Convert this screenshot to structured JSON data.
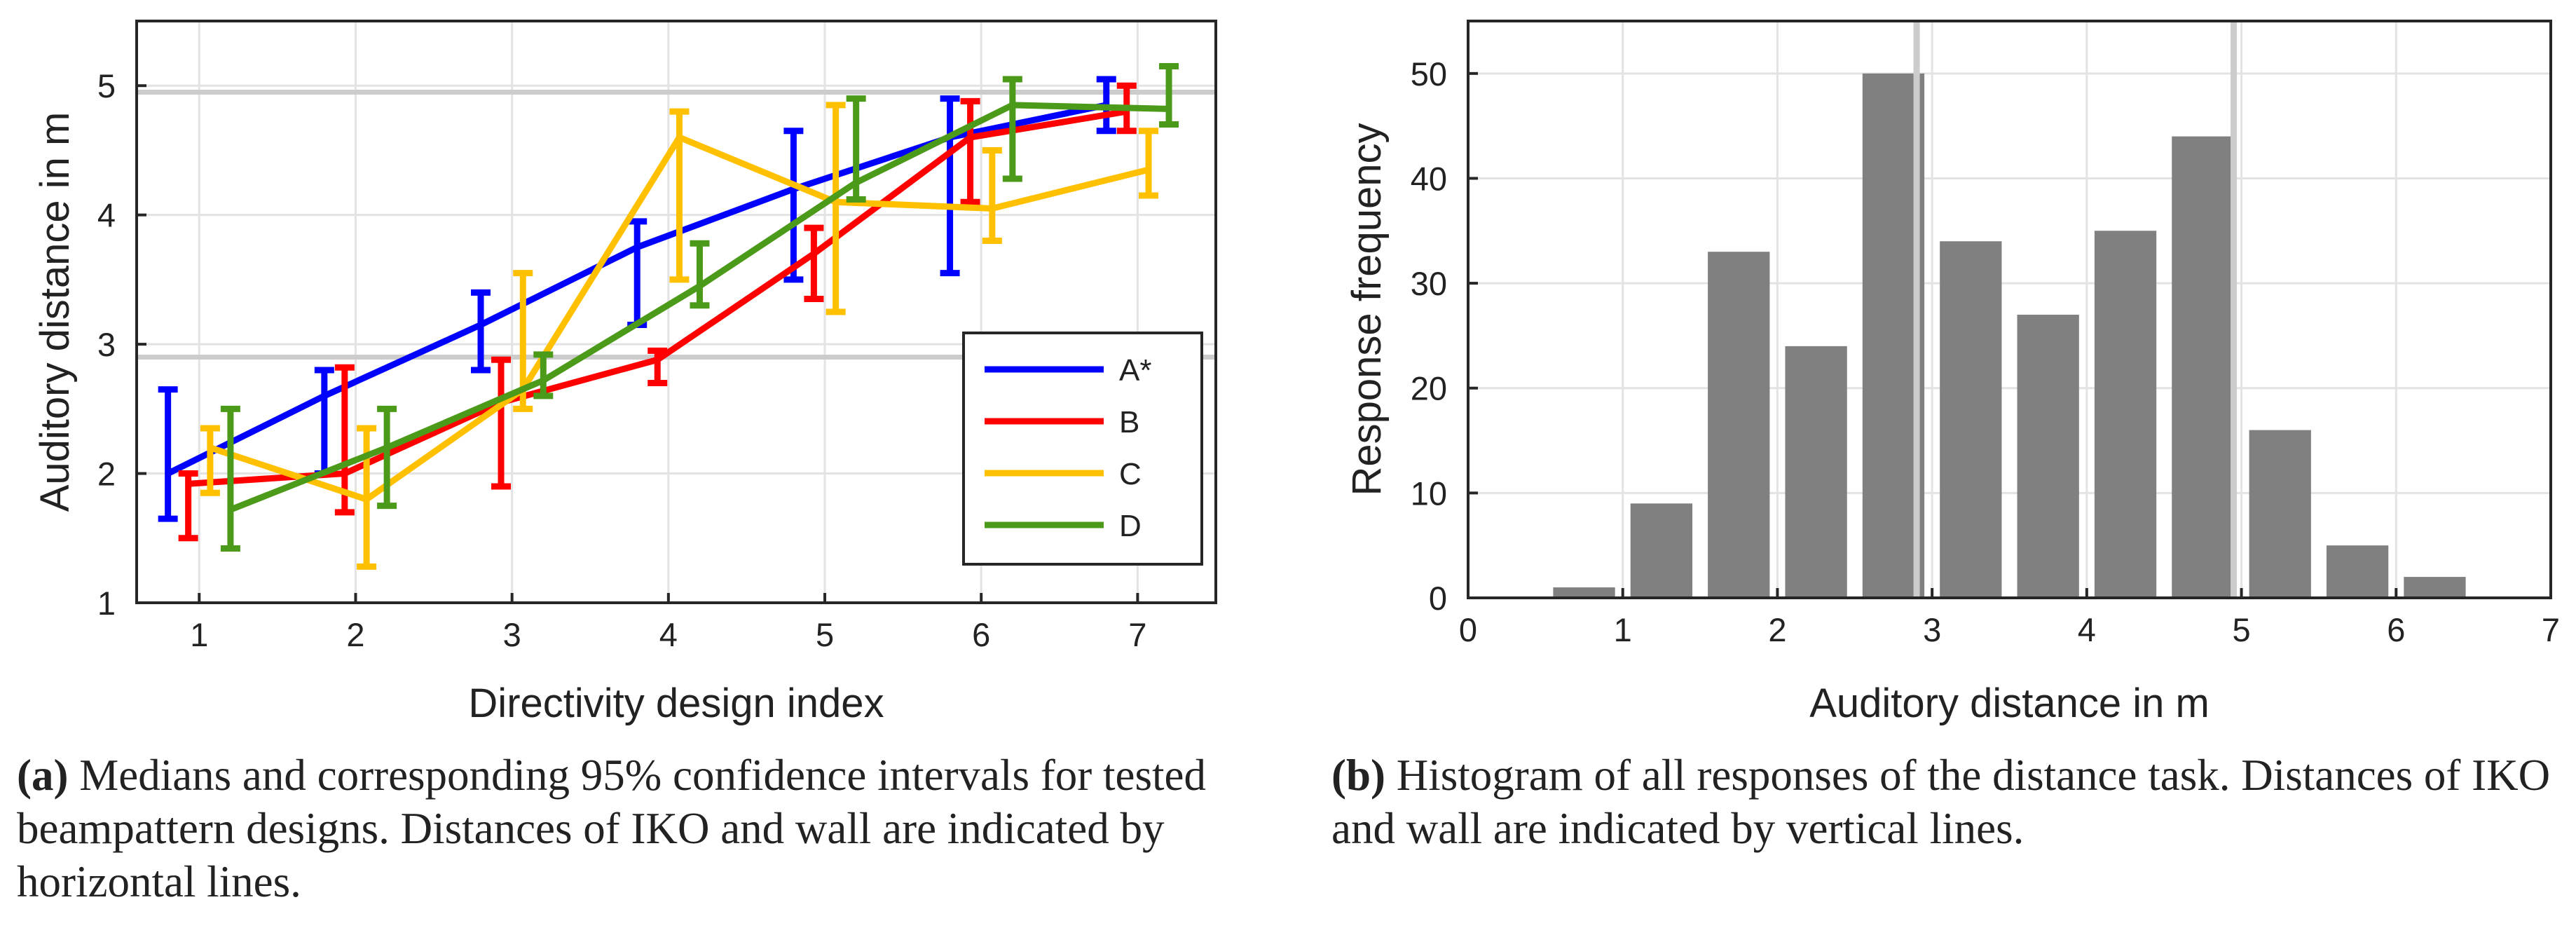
{
  "chart_data": [
    {
      "type": "line",
      "panel": "a",
      "xlabel": "Directivity design index",
      "ylabel": "Auditory distance in m",
      "xlim": [
        0.6,
        7.5
      ],
      "ylim": [
        1,
        5.5
      ],
      "xticks": [
        "1",
        "2",
        "3",
        "4",
        "5",
        "6",
        "7"
      ],
      "yticks": [
        "1",
        "2",
        "3",
        "4",
        "5"
      ],
      "grid": true,
      "legend_position": "bottom-right",
      "reference_lines_y": [
        4.95,
        2.9
      ],
      "reference_line_color": "#cccccc",
      "series": [
        {
          "name": "A*",
          "color": "#0000ff",
          "offset": -0.2,
          "values": [
            2.0,
            2.6,
            3.15,
            3.75,
            4.2,
            4.6,
            4.85
          ],
          "ci_low": [
            1.65,
            2.0,
            2.8,
            3.15,
            3.5,
            3.55,
            4.65
          ],
          "ci_high": [
            2.65,
            2.8,
            3.4,
            3.95,
            4.65,
            4.9,
            5.05
          ]
        },
        {
          "name": "B",
          "color": "#ff0000",
          "offset": -0.07,
          "values": [
            1.92,
            2.0,
            2.55,
            2.88,
            3.7,
            4.6,
            4.8
          ],
          "ci_low": [
            1.5,
            1.7,
            1.9,
            2.7,
            3.35,
            4.1,
            4.65
          ],
          "ci_high": [
            2.0,
            2.82,
            2.88,
            2.95,
            3.9,
            4.88,
            5.0
          ]
        },
        {
          "name": "C",
          "color": "#ffc000",
          "offset": 0.07,
          "values": [
            2.2,
            1.8,
            2.65,
            4.6,
            4.1,
            4.05,
            4.35
          ],
          "ci_low": [
            1.85,
            1.28,
            2.5,
            3.5,
            3.25,
            3.8,
            4.15
          ],
          "ci_high": [
            2.35,
            2.35,
            3.55,
            4.8,
            4.85,
            4.5,
            4.65
          ]
        },
        {
          "name": "D",
          "color": "#4c9a19",
          "offset": 0.2,
          "values": [
            1.72,
            2.2,
            2.72,
            3.45,
            4.25,
            4.85,
            4.82
          ],
          "ci_low": [
            1.42,
            1.75,
            2.6,
            3.3,
            4.12,
            4.28,
            4.7
          ],
          "ci_high": [
            2.5,
            2.5,
            2.92,
            3.78,
            4.9,
            5.05,
            5.15
          ]
        }
      ]
    },
    {
      "type": "bar",
      "panel": "b",
      "xlabel": "Auditory distance in m",
      "ylabel": "Response frequency",
      "xlim": [
        0,
        7
      ],
      "ylim": [
        0,
        55
      ],
      "xticks": [
        "0",
        "1",
        "2",
        "3",
        "4",
        "5",
        "6",
        "7"
      ],
      "yticks": [
        "0",
        "10",
        "20",
        "30",
        "40",
        "50"
      ],
      "grid": true,
      "bar_color": "#808080",
      "bin_centers": [
        0.5,
        1.0,
        1.5,
        2.0,
        2.5,
        3.0,
        3.5,
        4.0,
        4.5,
        5.0,
        5.5,
        6.0
      ],
      "values": [
        0,
        1,
        9,
        33,
        24,
        50,
        34,
        27,
        35,
        44,
        16,
        5,
        2
      ],
      "bar_centers": [
        0.25,
        0.75,
        1.25,
        1.75,
        2.25,
        2.75,
        3.25,
        3.75,
        4.25,
        4.75,
        5.25,
        5.75,
        6.25
      ],
      "bar_width": 0.4,
      "reference_lines_x": [
        2.9,
        4.95
      ],
      "reference_line_color": "#cccccc"
    }
  ],
  "captions": {
    "a": {
      "tag": "(a)",
      "text": "Medians and corresponding 95% confidence intervals for tested beampattern designs. Distances of IKO and wall are indicated by horizontal lines."
    },
    "b": {
      "tag": "(b)",
      "text": "Histogram of all responses of the distance task. Distances of IKO and wall are indicated by vertical lines."
    }
  }
}
